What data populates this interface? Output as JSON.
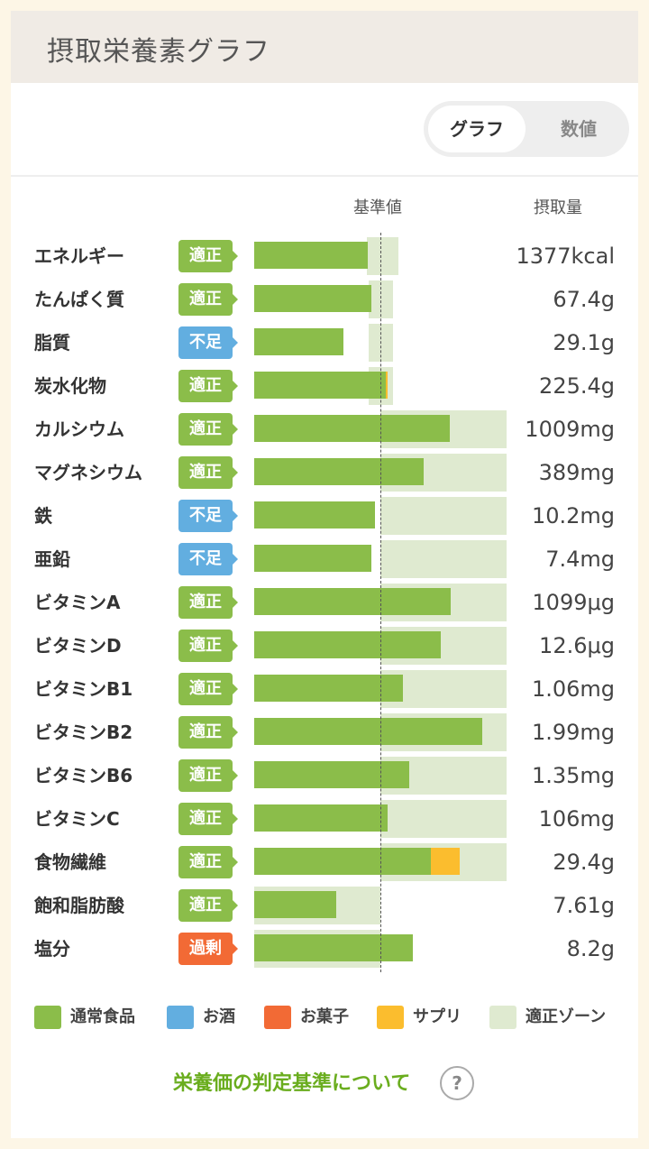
{
  "header": {
    "title": "摂取栄養素グラフ"
  },
  "toggle": {
    "graph_label": "グラフ",
    "values_label": "数値"
  },
  "columns": {
    "reference": "基準値",
    "intake": "摂取量"
  },
  "colors": {
    "normal_food": "#8bbd4a",
    "alcohol": "#62aee0",
    "snack": "#f26a35",
    "supplement": "#fbbd2e",
    "proper_zone": "#dfead0",
    "link": "#6aad1e"
  },
  "status_colors": {
    "適正": "#8bbd4a",
    "不足": "#62aee0",
    "過剰": "#f26a35"
  },
  "nutrients": [
    {
      "name": "エネルギー",
      "status": "適正",
      "value": "1377kcal",
      "intake_pct": 90,
      "supplement_pct": 0,
      "zone_pct": [
        89,
        114
      ]
    },
    {
      "name": "たんぱく質",
      "status": "適正",
      "value": "67.4g",
      "intake_pct": 93,
      "supplement_pct": 0,
      "zone_pct": [
        91,
        110
      ]
    },
    {
      "name": "脂質",
      "status": "不足",
      "value": "29.1g",
      "intake_pct": 71,
      "supplement_pct": 0,
      "zone_pct": [
        91,
        110
      ]
    },
    {
      "name": "炭水化物",
      "status": "適正",
      "value": "225.4g",
      "intake_pct": 104,
      "supplement_pct": 2,
      "zone_pct": [
        91,
        110
      ]
    },
    {
      "name": "カルシウム",
      "status": "適正",
      "value": "1009mg",
      "intake_pct": 155,
      "supplement_pct": 0,
      "zone_pct": [
        100,
        200
      ]
    },
    {
      "name": "マグネシウム",
      "status": "適正",
      "value": "389mg",
      "intake_pct": 134,
      "supplement_pct": 0,
      "zone_pct": [
        100,
        200
      ]
    },
    {
      "name": "鉄",
      "status": "不足",
      "value": "10.2mg",
      "intake_pct": 96,
      "supplement_pct": 0,
      "zone_pct": [
        100,
        200
      ]
    },
    {
      "name": "亜鉛",
      "status": "不足",
      "value": "7.4mg",
      "intake_pct": 93,
      "supplement_pct": 0,
      "zone_pct": [
        100,
        200
      ]
    },
    {
      "name": "ビタミンA",
      "status": "適正",
      "value": "1099μg",
      "intake_pct": 156,
      "supplement_pct": 0,
      "zone_pct": [
        100,
        200
      ]
    },
    {
      "name": "ビタミンD",
      "status": "適正",
      "value": "12.6μg",
      "intake_pct": 148,
      "supplement_pct": 0,
      "zone_pct": [
        100,
        200
      ]
    },
    {
      "name": "ビタミンB1",
      "status": "適正",
      "value": "1.06mg",
      "intake_pct": 118,
      "supplement_pct": 0,
      "zone_pct": [
        100,
        200
      ]
    },
    {
      "name": "ビタミンB2",
      "status": "適正",
      "value": "1.99mg",
      "intake_pct": 181,
      "supplement_pct": 0,
      "zone_pct": [
        100,
        200
      ]
    },
    {
      "name": "ビタミンB6",
      "status": "適正",
      "value": "1.35mg",
      "intake_pct": 123,
      "supplement_pct": 0,
      "zone_pct": [
        100,
        200
      ]
    },
    {
      "name": "ビタミンC",
      "status": "適正",
      "value": "106mg",
      "intake_pct": 106,
      "supplement_pct": 0,
      "zone_pct": [
        100,
        200
      ]
    },
    {
      "name": "食物繊維",
      "status": "適正",
      "value": "29.4g",
      "intake_pct": 140,
      "supplement_pct": 23,
      "zone_pct": [
        100,
        200
      ]
    },
    {
      "name": "飽和脂肪酸",
      "status": "適正",
      "value": "7.61g",
      "intake_pct": 65,
      "supplement_pct": 0,
      "zone_pct": [
        0,
        100
      ]
    },
    {
      "name": "塩分",
      "status": "過剰",
      "value": "8.2g",
      "intake_pct": 126,
      "supplement_pct": 0,
      "zone_pct": [
        0,
        100
      ]
    }
  ],
  "legend": [
    {
      "label": "通常食品",
      "color": "#8bbd4a"
    },
    {
      "label": "お酒",
      "color": "#62aee0"
    },
    {
      "label": "お菓子",
      "color": "#f26a35"
    },
    {
      "label": "サプリ",
      "color": "#fbbd2e"
    },
    {
      "label": "適正ゾーン",
      "color": "#dfead0"
    }
  ],
  "footer": {
    "link_label": "栄養価の判定基準について",
    "help_glyph": "?"
  }
}
